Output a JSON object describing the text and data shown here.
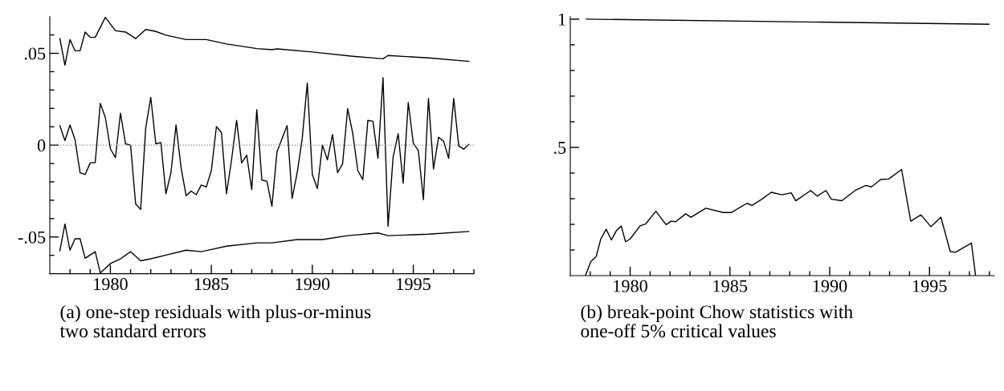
{
  "chart_data": [
    {
      "type": "line",
      "xlim": [
        1977,
        1998
      ],
      "ylim": [
        -0.07,
        0.07
      ],
      "xticks": [
        {
          "value": 1978,
          "label": null
        },
        {
          "value": 1979,
          "label": null
        },
        1980,
        {
          "value": 1981,
          "label": null
        },
        {
          "value": 1982,
          "label": null
        },
        {
          "value": 1983,
          "label": null
        },
        {
          "value": 1984,
          "label": null
        },
        1985,
        {
          "value": 1986,
          "label": null
        },
        {
          "value": 1987,
          "label": null
        },
        {
          "value": 1988,
          "label": null
        },
        {
          "value": 1989,
          "label": null
        },
        1990,
        {
          "value": 1991,
          "label": null
        },
        {
          "value": 1992,
          "label": null
        },
        {
          "value": 1993,
          "label": null
        },
        {
          "value": 1994,
          "label": null
        },
        1995,
        {
          "value": 1996,
          "label": null
        },
        {
          "value": 1997,
          "label": null
        },
        {
          "value": 1998,
          "label": null
        }
      ],
      "yticks": [
        {
          "value": -0.06,
          "label": null
        },
        {
          "value": -0.05,
          "label": "-.05"
        },
        {
          "value": -0.04,
          "label": null
        },
        {
          "value": -0.03,
          "label": null
        },
        {
          "value": -0.02,
          "label": null
        },
        {
          "value": -0.01,
          "label": null
        },
        0,
        {
          "value": 0.01,
          "label": null
        },
        {
          "value": 0.02,
          "label": null
        },
        {
          "value": 0.03,
          "label": null
        },
        {
          "value": 0.04,
          "label": null
        },
        {
          "value": 0.05,
          "label": ".05"
        },
        {
          "value": 0.06,
          "label": null
        }
      ],
      "ref_lines": [
        {
          "axis": "y",
          "value": 0,
          "label": null,
          "color": "#888888",
          "line_style": "dotted"
        }
      ],
      "series": [
        {
          "color": "#000000",
          "x": [
            1977.5,
            1977.75,
            1978,
            1978.25,
            1978.5,
            1978.75,
            1979,
            1979.25,
            1979.5,
            1979.75,
            1980,
            1980.25,
            1980.5,
            1980.75,
            1981,
            1981.25,
            1981.5,
            1981.75,
            1982,
            1982.25,
            1982.5,
            1982.75,
            1983,
            1983.25,
            1983.5,
            1983.75,
            1984,
            1984.25,
            1984.5,
            1984.75,
            1985,
            1985.25,
            1985.5,
            1985.75,
            1986,
            1986.25,
            1986.5,
            1986.75,
            1987,
            1987.25,
            1987.5,
            1987.75,
            1988,
            1988.25,
            1988.5,
            1988.75,
            1989,
            1989.25,
            1989.5,
            1989.75,
            1990,
            1990.25,
            1990.5,
            1990.75,
            1991,
            1991.25,
            1991.5,
            1991.75,
            1992,
            1992.25,
            1992.5,
            1992.75,
            1993,
            1993.25,
            1993.5,
            1993.75,
            1994,
            1994.25,
            1994.5,
            1994.75,
            1995,
            1995.25,
            1995.5,
            1995.75,
            1996,
            1996.25,
            1996.5,
            1996.75,
            1997,
            1997.25,
            1997.5,
            1997.75
          ],
          "values": [
            0.0106,
            0.0025,
            0.011,
            0.003,
            -0.015,
            -0.016,
            -0.0097,
            -0.0094,
            0.0228,
            0.015,
            -0.002,
            -0.0068,
            0.0174,
            0.0007,
            0,
            -0.032,
            -0.035,
            0.0094,
            0.026,
            0.0007,
            0.0014,
            -0.0265,
            -0.015,
            0.011,
            -0.0123,
            -0.0275,
            -0.025,
            -0.027,
            -0.0217,
            -0.0228,
            -0.0138,
            0.0101,
            0.0068,
            -0.0265,
            -0.008,
            0.0135,
            -0.0097,
            -0.0054,
            -0.0242,
            0.0193,
            -0.019,
            -0.0196,
            -0.0333,
            -0.0036,
            0.0036,
            0.0106,
            -0.029,
            -0.015,
            0.0036,
            0.0338,
            -0.016,
            -0.0236,
            0,
            -0.008,
            0.0058,
            -0.015,
            -0.0101,
            0.0199,
            0.0065,
            -0.0138,
            -0.0188,
            0.0135,
            0.013,
            -0.0072,
            0.0367,
            -0.0442,
            -0.0065,
            0.0062,
            -0.0207,
            0.0232,
            0.001,
            -0.0029,
            -0.0297,
            0.0254,
            -0.013,
            0.0043,
            0.0022,
            -0.0072,
            0.0254,
            -0.0004,
            -0.0022,
            0.0004
          ]
        },
        {
          "color": "#000000",
          "x": [
            1977.5,
            1977.75,
            1978,
            1978.25,
            1978.5,
            1978.75,
            1979,
            1979.25,
            1979.75,
            1980.25,
            1980.75,
            1981.25,
            1981.75,
            1982.25,
            1982.75,
            1983.75,
            1984.75,
            1985.75,
            1987.25,
            1988,
            1988.25,
            1990,
            1992,
            1993.5,
            1993.75,
            1995.75,
            1997.75
          ],
          "values": [
            0.058,
            0.0435,
            0.0575,
            0.0514,
            0.0514,
            0.0616,
            0.0587,
            0.0587,
            0.0696,
            0.0623,
            0.0616,
            0.058,
            0.063,
            0.0619,
            0.0599,
            0.0575,
            0.0575,
            0.0551,
            0.0526,
            0.052,
            0.0524,
            0.0507,
            0.0484,
            0.047,
            0.0488,
            0.0475,
            0.0456
          ]
        },
        {
          "color": "#000000",
          "x": [
            1977.5,
            1977.75,
            1978,
            1978.25,
            1978.5,
            1978.75,
            1979.25,
            1979.5,
            1980,
            1980.5,
            1981,
            1981.5,
            1982,
            1982.75,
            1983.75,
            1984.5,
            1985.75,
            1987.25,
            1988,
            1989.25,
            1990.5,
            1991.75,
            1993.25,
            1993.75,
            1995.75,
            1997.75
          ],
          "values": [
            -0.0575,
            -0.043,
            -0.0572,
            -0.051,
            -0.051,
            -0.0616,
            -0.058,
            -0.0696,
            -0.0645,
            -0.0619,
            -0.058,
            -0.063,
            -0.0619,
            -0.0599,
            -0.0572,
            -0.058,
            -0.055,
            -0.0532,
            -0.0532,
            -0.0514,
            -0.0514,
            -0.0493,
            -0.0478,
            -0.0493,
            -0.0485,
            -0.047
          ]
        }
      ],
      "annotations": [
        "(a) one-step residuals with plus-or-minus\ntwo standard errors"
      ]
    },
    {
      "type": "line",
      "xlim": [
        1977,
        1998.25
      ],
      "ylim": [
        0,
        1.01
      ],
      "xticks": [
        {
          "value": 1978,
          "label": null
        },
        {
          "value": 1979,
          "label": null
        },
        1980,
        {
          "value": 1981,
          "label": null
        },
        {
          "value": 1982,
          "label": null
        },
        {
          "value": 1983,
          "label": null
        },
        {
          "value": 1984,
          "label": null
        },
        1985,
        {
          "value": 1986,
          "label": null
        },
        {
          "value": 1987,
          "label": null
        },
        {
          "value": 1988,
          "label": null
        },
        {
          "value": 1989,
          "label": null
        },
        1990,
        {
          "value": 1991,
          "label": null
        },
        {
          "value": 1992,
          "label": null
        },
        {
          "value": 1993,
          "label": null
        },
        {
          "value": 1994,
          "label": null
        },
        1995,
        {
          "value": 1996,
          "label": null
        },
        {
          "value": 1997,
          "label": null
        },
        {
          "value": 1998,
          "label": null
        }
      ],
      "yticks": [
        {
          "value": 0.1,
          "label": null
        },
        {
          "value": 0.2,
          "label": null
        },
        {
          "value": 0.3,
          "label": null
        },
        {
          "value": 0.4,
          "label": null
        },
        {
          "value": 0.5,
          "label": ".5"
        },
        {
          "value": 0.6,
          "label": null
        },
        {
          "value": 0.7,
          "label": null
        },
        {
          "value": 0.8,
          "label": null
        },
        {
          "value": 0.9,
          "label": null
        },
        1
      ],
      "series": [
        {
          "color": "#000000",
          "x": [
            1977.76,
            1978.03,
            1978.3,
            1978.53,
            1978.8,
            1979.06,
            1979.3,
            1979.55,
            1979.77,
            1980,
            1980.5,
            1980.77,
            1981.29,
            1981.8,
            1982.05,
            1982.28,
            1982.78,
            1983.05,
            1983.79,
            1984.66,
            1985.06,
            1985.86,
            1986.1,
            1986.6,
            1987.07,
            1987.6,
            1988.07,
            1988.3,
            1989.05,
            1989.37,
            1989.81,
            1990.08,
            1990.61,
            1991.29,
            1991.82,
            1992.09,
            1992.56,
            1992.96,
            1993.6,
            1994.06,
            1994.57,
            1995.07,
            1995.57,
            1996.04,
            1996.3,
            1997.1,
            1997.31
          ],
          "values": [
            0,
            0.055,
            0.075,
            0.143,
            0.181,
            0.139,
            0.174,
            0.194,
            0.132,
            0.143,
            0.194,
            0.201,
            0.251,
            0.199,
            0.212,
            0.21,
            0.241,
            0.228,
            0.263,
            0.246,
            0.246,
            0.282,
            0.274,
            0.298,
            0.325,
            0.315,
            0.323,
            0.292,
            0.332,
            0.31,
            0.332,
            0.298,
            0.292,
            0.333,
            0.352,
            0.346,
            0.375,
            0.377,
            0.414,
            0.212,
            0.237,
            0.191,
            0.228,
            0.094,
            0.091,
            0.127,
            0
          ]
        },
        {
          "color": "#000000",
          "x": [
            1977.8,
            1997.98
          ],
          "values": [
            1.0,
            0.98
          ]
        }
      ],
      "annotations": [
        "(b) break-point Chow statistics with\none-off 5% critical values"
      ]
    }
  ]
}
